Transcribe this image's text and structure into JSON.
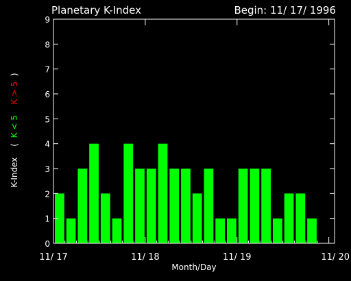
{
  "chart_data": {
    "type": "bar",
    "title": "Planetary K-Index",
    "begin_label": "Begin: 11/ 17/ 1996",
    "xlabel": "Month/Day",
    "ylabel": {
      "prefix": "K-Index",
      "open": "(",
      "green_part": "K < 5",
      "red_part": "K > 5",
      "close": ")"
    },
    "ylim": [
      0,
      9
    ],
    "yticks": [
      0,
      1,
      2,
      3,
      4,
      5,
      6,
      7,
      8,
      9
    ],
    "xticks": [
      "11/ 17",
      "11/ 18",
      "11/ 19",
      "11/ 20"
    ],
    "values": [
      2,
      1,
      3,
      4,
      2,
      1,
      4,
      3,
      3,
      4,
      3,
      3,
      2,
      3,
      1,
      1,
      3,
      3,
      3,
      1,
      2,
      2,
      1
    ],
    "bar_color": "#00ff00",
    "high_color": "#ff0000",
    "axis_color": "#ffffff",
    "background": "#000000"
  }
}
